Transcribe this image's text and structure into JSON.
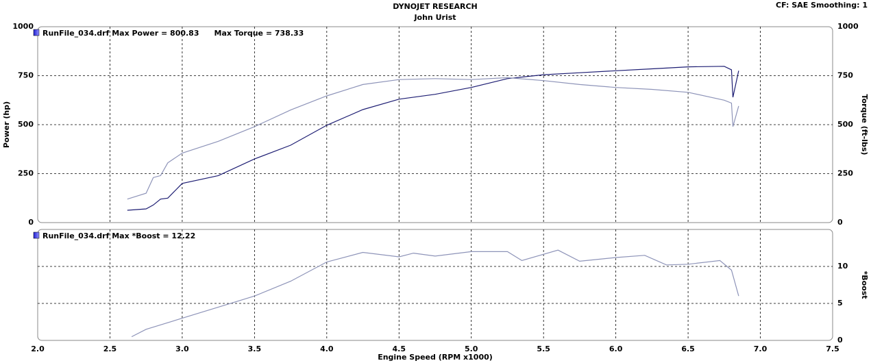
{
  "chart_data": [
    {
      "type": "line",
      "title": "DYNOJET RESEARCH",
      "subtitle": "John Urist",
      "annotation": "CF: SAE  Smoothing: 1",
      "ylabel": "Power (hp)",
      "y2label": "Torque (ft-lbs)",
      "x": [
        2.62,
        2.75,
        2.8,
        2.85,
        2.9,
        3.0,
        3.25,
        3.5,
        3.75,
        4.0,
        4.25,
        4.5,
        4.75,
        5.0,
        5.25,
        5.5,
        5.75,
        6.0,
        6.25,
        6.5,
        6.75,
        6.8,
        6.81,
        6.85
      ],
      "xlim": [
        2,
        7.5
      ],
      "xticks": [
        {
          "value": 2,
          "label": "2.0"
        },
        2.5,
        {
          "value": 3,
          "label": "3.0"
        },
        3.5,
        {
          "value": 4,
          "label": "4.0"
        },
        4.5,
        {
          "value": 5,
          "label": "5.0"
        },
        5.5,
        {
          "value": 6,
          "label": "6.0"
        },
        6.5,
        {
          "value": 7,
          "label": "7.0"
        },
        7.5
      ],
      "ylim": [
        0,
        1000
      ],
      "yticks": [
        0,
        250,
        500,
        750,
        1000
      ],
      "y2lim": [
        0,
        1000
      ],
      "y2ticks": [
        0,
        250,
        500,
        750,
        1000
      ],
      "grid": true,
      "series": [
        {
          "name": "RunFile_034.drf Max Power = 800.83",
          "color": "#1c1c72",
          "values": [
            63,
            70,
            90,
            120,
            125,
            200,
            240,
            325,
            395,
            497,
            577,
            630,
            655,
            690,
            735,
            755,
            765,
            775,
            785,
            795,
            798,
            780,
            640,
            775
          ]
        },
        {
          "name": "Max Torque = 738.33",
          "color": "#8d93b8",
          "axis": "y2",
          "values": [
            120,
            150,
            230,
            240,
            305,
            355,
            415,
            490,
            575,
            647,
            705,
            730,
            735,
            730,
            740,
            725,
            705,
            690,
            680,
            665,
            625,
            610,
            490,
            595
          ]
        }
      ]
    },
    {
      "type": "line",
      "xlabel": "Engine Speed (RPM x1000)",
      "y2label": "*Boost",
      "x": [
        2.65,
        2.75,
        3.0,
        3.25,
        3.5,
        3.75,
        4.0,
        4.25,
        4.5,
        4.6,
        4.75,
        5.0,
        5.25,
        5.35,
        5.6,
        5.75,
        6.0,
        6.2,
        6.35,
        6.5,
        6.72,
        6.8,
        6.85
      ],
      "xlim": [
        2,
        7.5
      ],
      "xticks": [
        {
          "value": 2,
          "label": "2.0"
        },
        2.5,
        {
          "value": 3,
          "label": "3.0"
        },
        3.5,
        {
          "value": 4,
          "label": "4.0"
        },
        4.5,
        {
          "value": 5,
          "label": "5.0"
        },
        5.5,
        {
          "value": 6,
          "label": "6.0"
        },
        6.5,
        {
          "value": 7,
          "label": "7.0"
        },
        7.5
      ],
      "y2lim": [
        0,
        15
      ],
      "y2ticks": [
        0,
        5,
        10
      ],
      "grid": true,
      "series": [
        {
          "name": "RunFile_034.drf Max *Boost = 12.22",
          "color": "#8d93b8",
          "axis": "y2",
          "values": [
            0.5,
            1.5,
            3,
            4.5,
            6,
            8,
            10.6,
            11.9,
            11.3,
            11.8,
            11.4,
            12,
            12,
            10.8,
            12.2,
            10.7,
            11.2,
            11.5,
            10.2,
            10.3,
            10.8,
            9.5,
            6
          ]
        }
      ]
    }
  ]
}
